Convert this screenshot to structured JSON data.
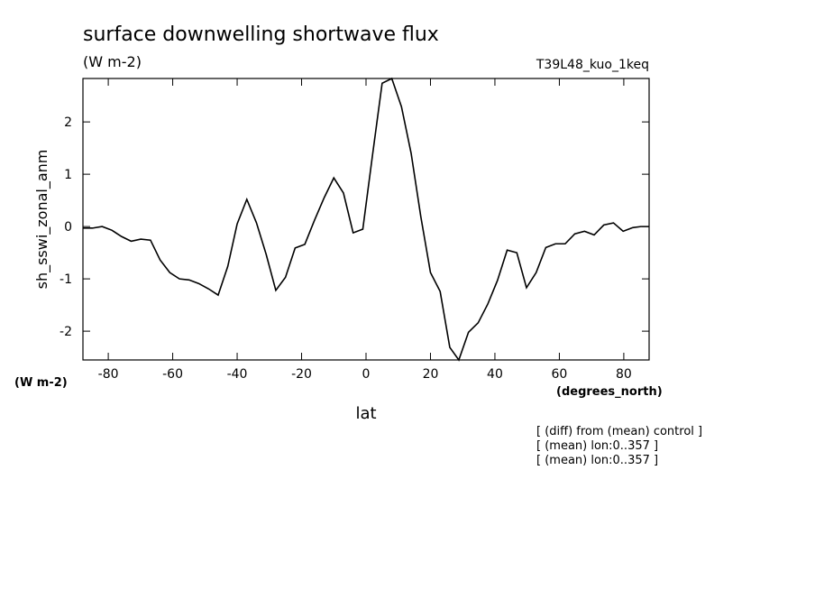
{
  "chart_data": {
    "type": "line",
    "title": "surface downwelling shortwave flux",
    "subtitle": "(W m-2)",
    "run_label": "T39L48_kuo_1keq",
    "y_label": "sh_sswi_zonal_anm",
    "y_units": "(W m-2)",
    "x_units": "(degrees_north)",
    "x_label": "lat",
    "notes": [
      "[ (diff) from (mean) control ]",
      "[ (mean) lon:0..357 ]",
      "[ (mean) lon:0..357 ]"
    ],
    "x": [
      -87.86,
      -84.9,
      -81.9,
      -78.9,
      -75.9,
      -72.9,
      -69.9,
      -66.9,
      -63.9,
      -60.9,
      -57.9,
      -54.9,
      -51.9,
      -48.9,
      -45.9,
      -42.9,
      -40.0,
      -37.0,
      -34.0,
      -31.0,
      -28.0,
      -25.0,
      -22.0,
      -19.0,
      -16.0,
      -13.0,
      -10.0,
      -7.0,
      -4.0,
      -1.0,
      2.0,
      5.0,
      8.0,
      11.0,
      14.0,
      17.0,
      20.0,
      23.0,
      26.0,
      28.8,
      31.8,
      34.8,
      37.8,
      40.8,
      43.8,
      46.8,
      49.8,
      52.8,
      55.8,
      58.8,
      61.8,
      64.8,
      67.8,
      70.8,
      73.8,
      76.8,
      79.8,
      82.8,
      85.3,
      87.86
    ],
    "series": [
      {
        "name": "sh_sswi_zonal_anm",
        "color": "#000000",
        "values": [
          -0.03,
          -0.03,
          0.0,
          -0.07,
          -0.19,
          -0.28,
          -0.24,
          -0.26,
          -0.64,
          -0.88,
          -1.0,
          -1.02,
          -1.09,
          -1.19,
          -1.31,
          -0.76,
          0.05,
          0.52,
          0.07,
          -0.53,
          -1.22,
          -0.97,
          -0.41,
          -0.34,
          0.12,
          0.55,
          0.93,
          0.64,
          -0.12,
          -0.05,
          1.36,
          2.74,
          2.83,
          2.29,
          1.4,
          0.19,
          -0.88,
          -1.24,
          -2.31,
          -2.55,
          -2.02,
          -1.84,
          -1.48,
          -1.03,
          -0.45,
          -0.5,
          -1.17,
          -0.88,
          -0.4,
          -0.33,
          -0.33,
          -0.14,
          -0.09,
          -0.16,
          0.03,
          0.07,
          -0.09,
          -0.02,
          0.0,
          0.0
        ]
      }
    ],
    "xlim": [
      -87.86,
      87.86
    ],
    "ylim": [
      -2.55,
      2.83
    ],
    "xticks": [
      -80,
      -60,
      -40,
      -20,
      0,
      20,
      40,
      60,
      80
    ],
    "yticks": [
      -2,
      -1,
      0,
      1,
      2
    ]
  }
}
